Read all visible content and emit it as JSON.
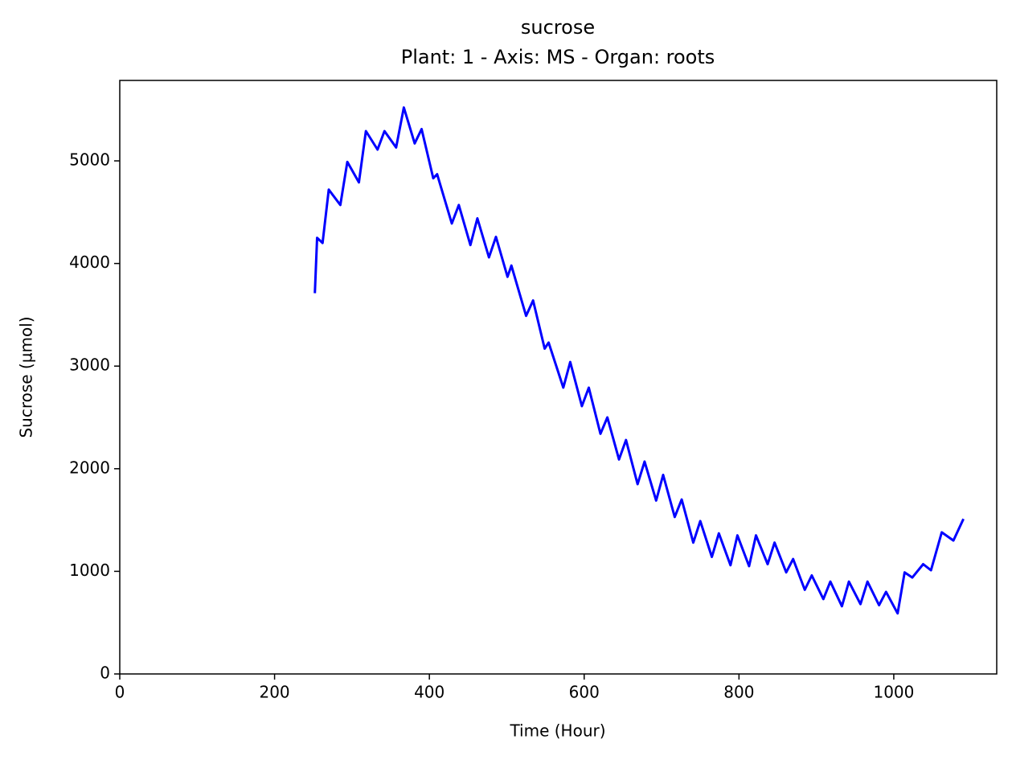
{
  "chart_data": {
    "type": "line",
    "title": "sucrose",
    "subtitle": "Plant: 1 - Axis: MS - Organ: roots",
    "x_label": "Time (Hour)",
    "y_label": "Sucrose (µmol)",
    "x": [
      252,
      255,
      262,
      270,
      285,
      294,
      309,
      318,
      333,
      342,
      357,
      367,
      381,
      390,
      405,
      410,
      429,
      438,
      453,
      462,
      477,
      486,
      501,
      506,
      525,
      534,
      549,
      554,
      573,
      582,
      597,
      606,
      621,
      630,
      645,
      654,
      669,
      678,
      693,
      702,
      717,
      726,
      741,
      750,
      765,
      774,
      789,
      798,
      813,
      822,
      837,
      846,
      861,
      870,
      885,
      894,
      909,
      918,
      933,
      942,
      957,
      966,
      981,
      990,
      1005,
      1014,
      1024,
      1038,
      1048,
      1062,
      1077,
      1090
    ],
    "series": [
      {
        "name": "sucrose",
        "color": "#0000ff",
        "values": [
          3710,
          4250,
          4200,
          4720,
          4570,
          4990,
          4790,
          5290,
          5110,
          5290,
          5130,
          5520,
          5170,
          5310,
          4830,
          4870,
          4390,
          4570,
          4180,
          4440,
          4060,
          4260,
          3870,
          3980,
          3490,
          3640,
          3170,
          3230,
          2790,
          3040,
          2610,
          2790,
          2340,
          2500,
          2090,
          2280,
          1850,
          2070,
          1690,
          1940,
          1530,
          1700,
          1280,
          1490,
          1140,
          1370,
          1060,
          1350,
          1050,
          1350,
          1070,
          1280,
          990,
          1120,
          820,
          960,
          730,
          900,
          660,
          900,
          680,
          900,
          670,
          800,
          590,
          990,
          940,
          1070,
          1010,
          1380,
          1300,
          1510
        ]
      }
    ],
    "xlim": [
      0,
      1133
    ],
    "ylim": [
      0,
      5784
    ],
    "xticks": [
      0,
      200,
      400,
      600,
      800,
      1000
    ],
    "yticks": [
      0,
      1000,
      2000,
      3000,
      4000,
      5000
    ],
    "grid": false,
    "legend": false
  }
}
